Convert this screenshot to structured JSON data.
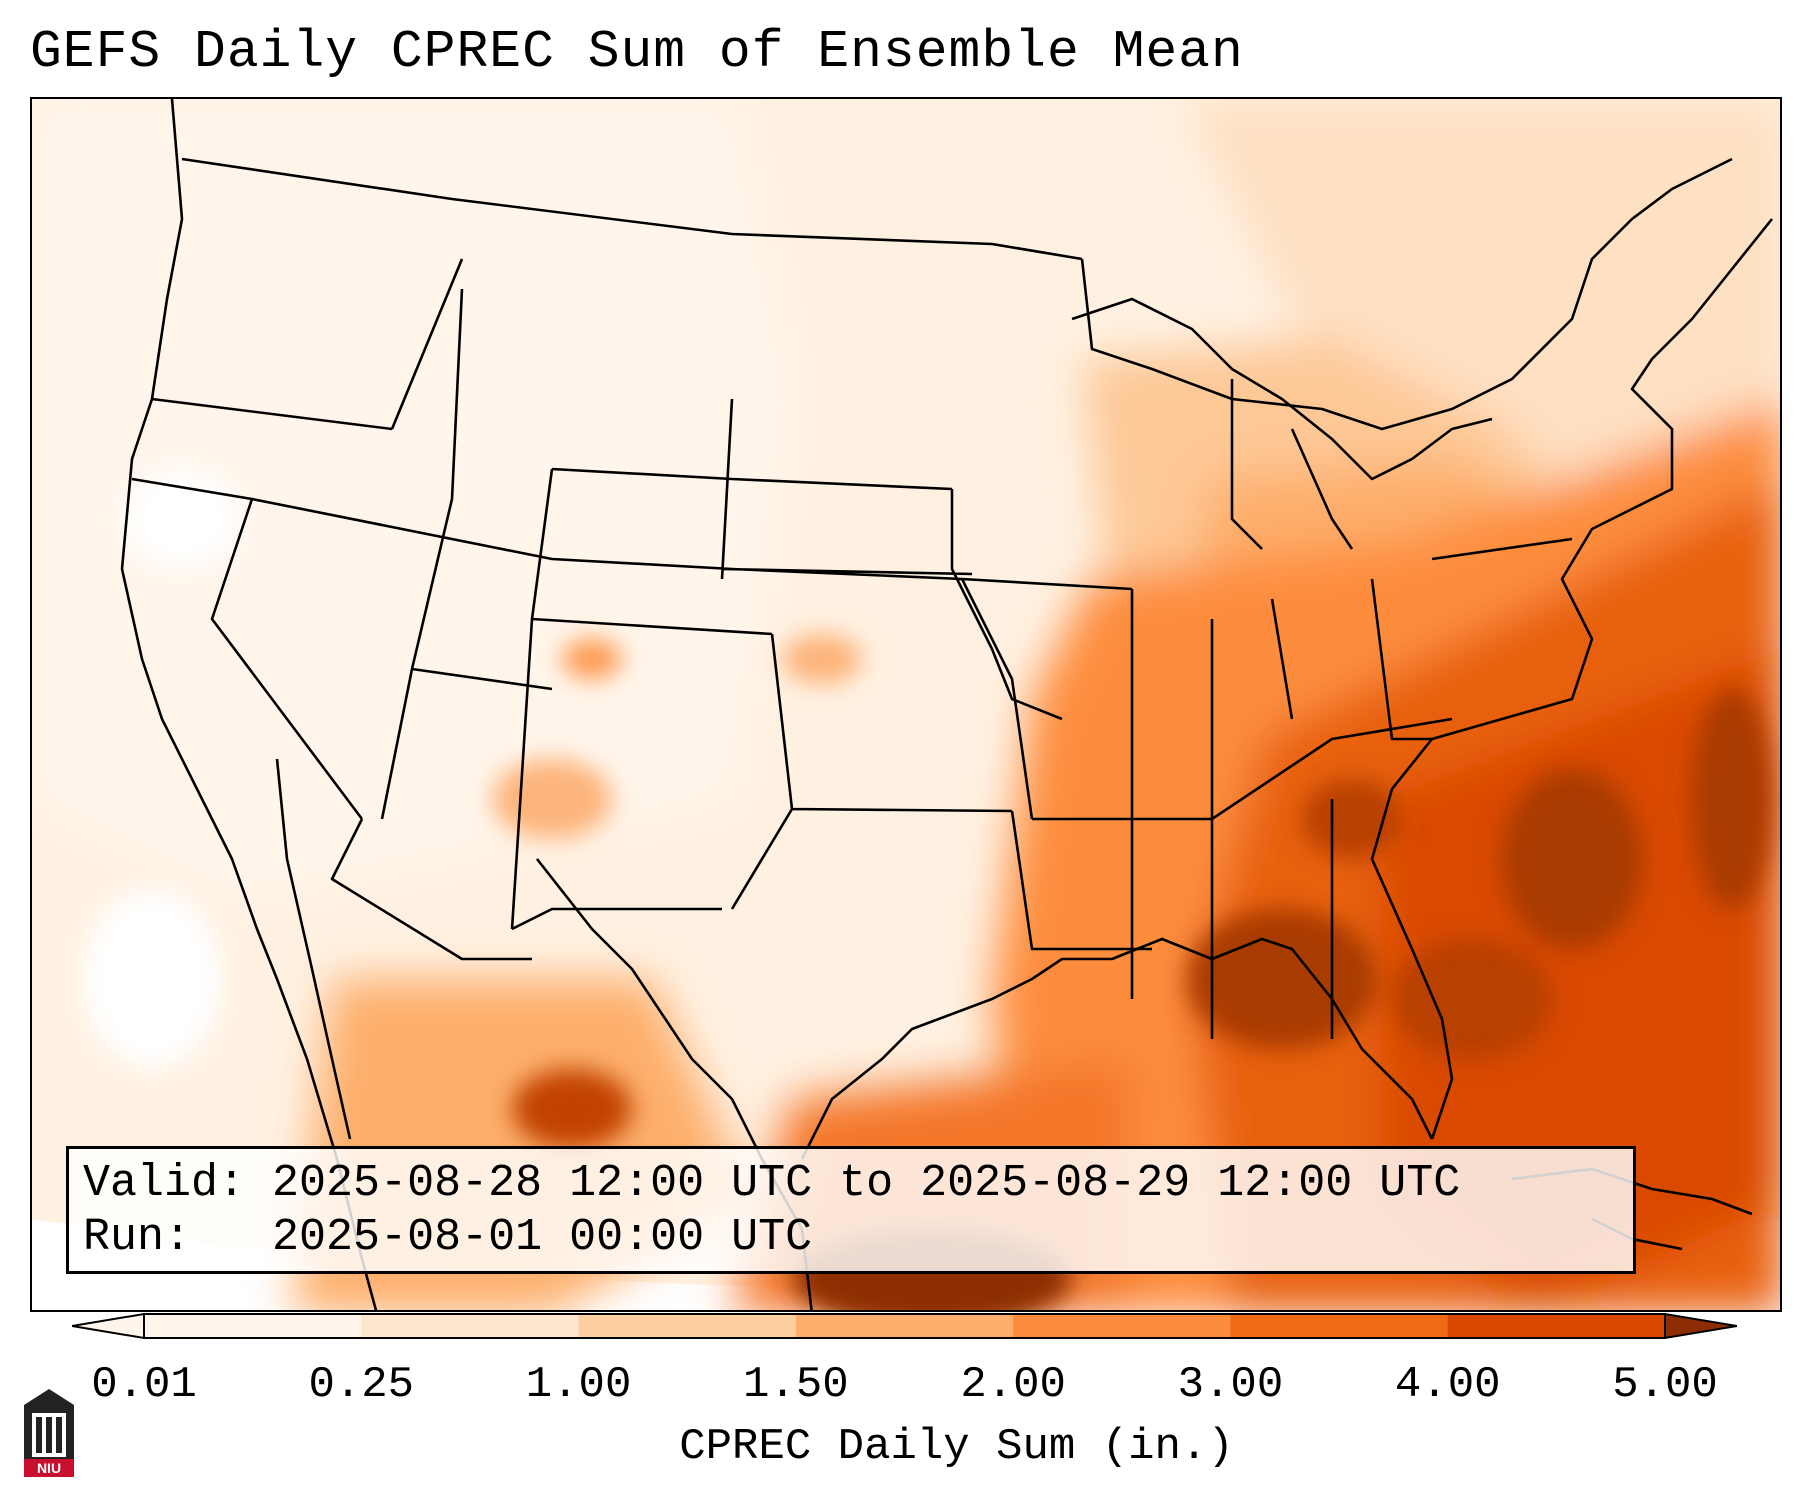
{
  "title": "GEFS Daily CPREC Sum of Ensemble Mean",
  "info": {
    "valid_label": "Valid:",
    "valid_value": "2025-08-28 12:00 UTC to 2025-08-29 12:00 UTC",
    "run_label": "Run:",
    "run_value": "2025-08-01 00:00 UTC"
  },
  "colorbar": {
    "label": "CPREC Daily Sum (in.)",
    "ticks": [
      "0.01",
      "0.25",
      "1.00",
      "1.50",
      "2.00",
      "3.00",
      "4.00",
      "5.00"
    ],
    "colors": [
      "#fff5eb",
      "#fee6ce",
      "#fdd0a2",
      "#fdae6b",
      "#fd8d3c",
      "#f16913",
      "#d94801",
      "#8c2d04"
    ]
  },
  "logo": {
    "text": "NIU",
    "color": "#c8102e"
  }
}
